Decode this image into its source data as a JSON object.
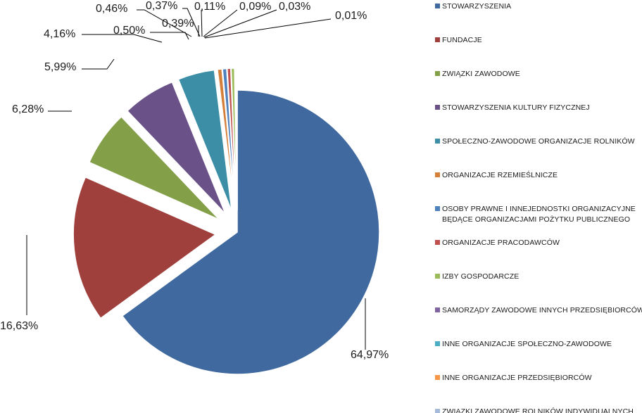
{
  "chart_data": {
    "type": "pie",
    "exploded": true,
    "legend_position": "right",
    "series": [
      {
        "name": "STOWARZYSZENIA",
        "value": 64.97,
        "label": "64,97%",
        "color": "#406a9f"
      },
      {
        "name": "FUNDACJE",
        "value": 16.63,
        "label": "16,63%",
        "color": "#a0403d"
      },
      {
        "name": "ZWIĄZKI ZAWODOWE",
        "value": 6.28,
        "label": "6,28%",
        "color": "#839f47"
      },
      {
        "name": "STOWARZYSZENIA KULTURY FIZYCZNEJ",
        "value": 5.99,
        "label": "5,99%",
        "color": "#6a5289"
      },
      {
        "name": "SPOŁECZNO-ZAWODOWE ORGANIZACJE ROLNIKÓW",
        "value": 4.16,
        "label": "4,16%",
        "color": "#3b8ea5"
      },
      {
        "name": "ORGANIZACJE RZEMIEŚLNICZE",
        "value": 0.5,
        "label": "0,50%",
        "color": "#d5803a"
      },
      {
        "name": "OSOBY PRAWNE I JEDNOSTKI ORGANIZACYJNE BĘDĄCE ORGANIZACJAMI POŻYTKU PUBLICZNEGO",
        "legend_lines": [
          "OSOBY PRAWNE I  INNEJEDNOSTKI ORGANIZACYJNE",
          "BĘDĄCE  ORGANIZACJAMI POŻYTKU PUBLICZNEGO"
        ],
        "value": 0.46,
        "label": "0,46%",
        "color": "#4f81bd"
      },
      {
        "name": "ORGANIZACJE PRACODAWCÓW",
        "value": 0.39,
        "label": "0,39%",
        "color": "#c0504d"
      },
      {
        "name": "IZBY GOSPODARCZE",
        "value": 0.37,
        "label": "0,37%",
        "color": "#9bbb59"
      },
      {
        "name": "SAMORZĄDY ZAWODOWE INNYCH PRZEDSIĘBIORCÓW",
        "value": 0.11,
        "label": "0,11%",
        "color": "#8064a2"
      },
      {
        "name": "INNE ORGANIZACJE SPOŁECZNO-ZAWODOWE",
        "value": 0.09,
        "label": "0,09%",
        "color": "#4bacc6"
      },
      {
        "name": "INNE ORGANIZACJE PRZEDSIĘBIORCÓW",
        "value": 0.03,
        "label": "0,03%",
        "color": "#f79646"
      },
      {
        "name": "ZWIĄZKI ZAWODOWE ROLNIKÓW INDYWIDUALNYCH",
        "value": 0.01,
        "label": "0,01%",
        "color": "#a6bbdb"
      }
    ]
  }
}
